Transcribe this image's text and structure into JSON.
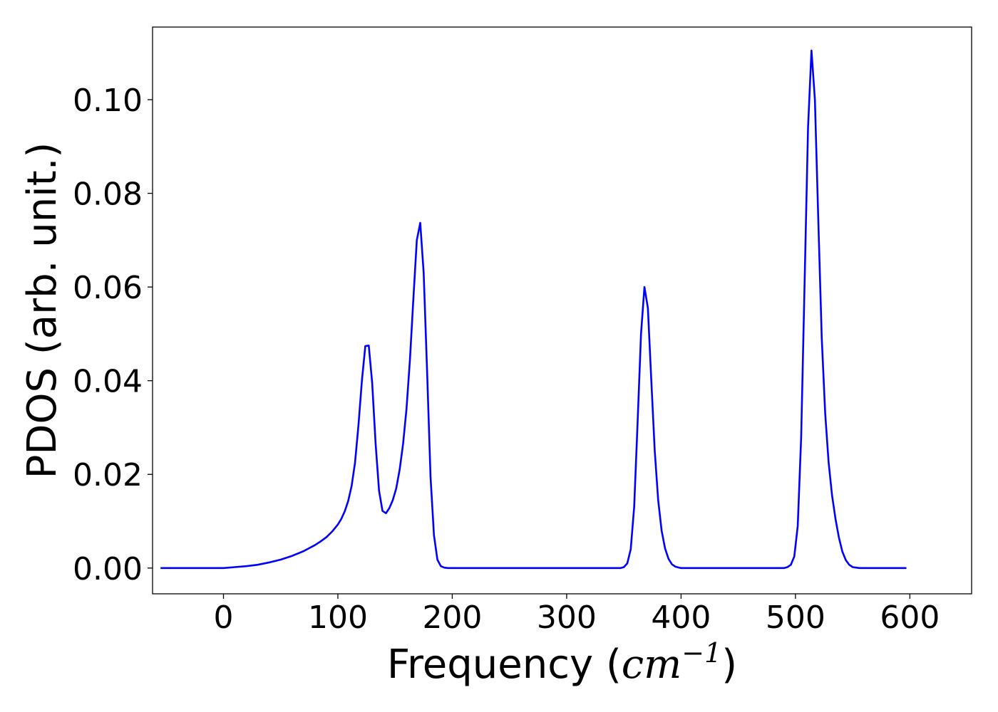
{
  "chart_data": {
    "type": "line",
    "title": "",
    "xlabel_prefix": "Frequency (",
    "xlabel_math": "cm",
    "xlabel_sup": "−1",
    "xlabel_suffix": ")",
    "ylabel": "PDOS (arb. unit.)",
    "xlim": [
      -62,
      654
    ],
    "ylim": [
      -0.0055,
      0.1155
    ],
    "xticks": [
      0,
      100,
      200,
      300,
      400,
      500,
      600
    ],
    "xtick_labels": [
      "0",
      "100",
      "200",
      "300",
      "400",
      "500",
      "600"
    ],
    "yticks": [
      0.0,
      0.02,
      0.04,
      0.06,
      0.08,
      0.1
    ],
    "ytick_labels": [
      "0.00",
      "0.02",
      "0.04",
      "0.06",
      "0.08",
      "0.10"
    ],
    "grid": false,
    "legend": "none",
    "series": [
      {
        "color": "#0000ff",
        "x": [
          -55,
          -40,
          -20,
          0,
          5,
          10,
          20,
          30,
          40,
          50,
          60,
          70,
          80,
          85,
          90,
          95,
          100,
          103,
          106,
          109,
          112,
          115,
          118,
          121,
          124,
          127,
          130,
          133,
          136,
          139,
          142,
          145,
          148,
          151,
          154,
          157,
          160,
          163,
          166,
          169,
          172,
          175,
          178,
          181,
          184,
          187,
          190,
          193,
          196,
          200,
          250,
          300,
          347,
          350,
          353,
          356,
          359,
          362,
          365,
          368,
          371,
          374,
          377,
          380,
          383,
          386,
          389,
          392,
          395,
          398,
          400,
          420,
          450,
          490,
          493,
          496,
          499,
          502,
          505,
          508,
          511,
          514,
          517,
          520,
          523,
          526,
          529,
          532,
          535,
          538,
          541,
          544,
          547,
          550,
          553,
          556,
          560,
          580,
          597
        ],
        "y": [
          0.0,
          0.0,
          0.0,
          0.0,
          0.0001,
          0.0002,
          0.0004,
          0.0007,
          0.0012,
          0.0018,
          0.0026,
          0.0036,
          0.0049,
          0.0057,
          0.0066,
          0.0078,
          0.0093,
          0.0105,
          0.0121,
          0.0143,
          0.0175,
          0.0225,
          0.0305,
          0.04,
          0.0474,
          0.0475,
          0.0395,
          0.0265,
          0.0165,
          0.0122,
          0.0117,
          0.0128,
          0.0145,
          0.017,
          0.021,
          0.0265,
          0.034,
          0.0445,
          0.0575,
          0.07,
          0.0737,
          0.063,
          0.042,
          0.0195,
          0.007,
          0.0018,
          0.0004,
          0.0001,
          0.0,
          0.0,
          0.0,
          0.0,
          0.0,
          0.0002,
          0.001,
          0.004,
          0.013,
          0.031,
          0.05,
          0.06,
          0.0555,
          0.04,
          0.025,
          0.0145,
          0.008,
          0.0042,
          0.002,
          0.0008,
          0.0003,
          0.0001,
          0.0,
          0.0,
          0.0,
          0.0,
          0.0002,
          0.0007,
          0.0025,
          0.009,
          0.028,
          0.061,
          0.094,
          0.1105,
          0.1,
          0.074,
          0.049,
          0.033,
          0.0225,
          0.0155,
          0.0105,
          0.0065,
          0.0035,
          0.0017,
          0.0007,
          0.0002,
          0.0001,
          0.0,
          0.0,
          0.0,
          0.0
        ]
      }
    ]
  }
}
